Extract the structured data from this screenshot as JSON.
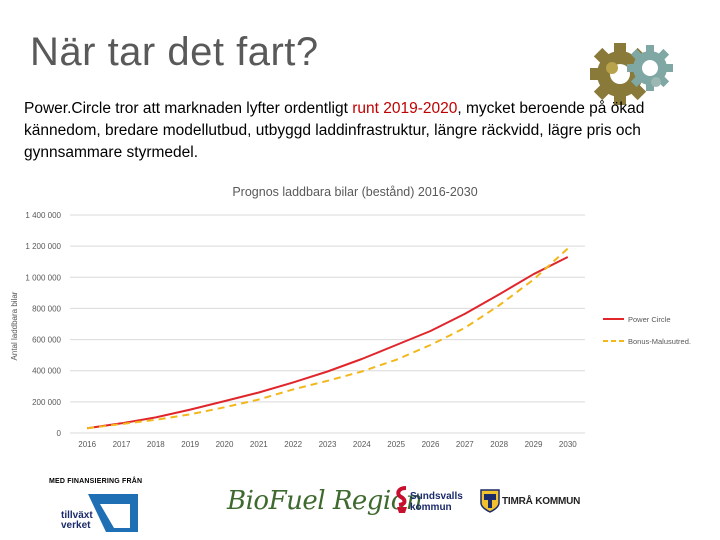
{
  "slide": {
    "title": "När tar det fart?",
    "intro_before": "Power.Circle tror att marknaden lyfter ordentligt ",
    "intro_highlight": "runt 2019-2020",
    "intro_after": ", mycket beroende på ökad kännedom, bredare modellutbud, utbyggd laddinfrastruktur, längre räckvidd, lägre pris och gynnsammare styrmedel."
  },
  "colors": {
    "power_circle": "#e0262b",
    "bonus_malus": "#f2b71a",
    "highlight": "#c00000",
    "grid": "#d9d9d9"
  },
  "chart_data": {
    "type": "line",
    "title": "Prognos laddbara bilar (bestånd) 2016-2030",
    "xlabel": "",
    "ylabel": "Antal laddbara bilar",
    "x": [
      "2016",
      "2017",
      "2018",
      "2019",
      "2020",
      "2021",
      "2022",
      "2023",
      "2024",
      "2025",
      "2026",
      "2027",
      "2028",
      "2029",
      "2030"
    ],
    "yticks": [
      "0",
      "200 000",
      "400 000",
      "600 000",
      "800 000",
      "1 000 000",
      "1 200 000",
      "1 400 000"
    ],
    "ylim": [
      0,
      1400000
    ],
    "grid": true,
    "legend_position": "right",
    "series": [
      {
        "name": "Power Circle",
        "style": "solid",
        "values": [
          30000,
          62000,
          100000,
          150000,
          205000,
          260000,
          325000,
          395000,
          475000,
          565000,
          655000,
          765000,
          890000,
          1020000,
          1130000
        ]
      },
      {
        "name": "Bonus-Malusutred.",
        "style": "dashed",
        "values": [
          30000,
          58000,
          85000,
          120000,
          165000,
          215000,
          280000,
          335000,
          395000,
          470000,
          565000,
          675000,
          820000,
          985000,
          1185000
        ]
      }
    ]
  },
  "footer": {
    "funding_label": "MED FINANSIERING FRÅN",
    "tillvaxt_line1": "tillväxt",
    "tillvaxt_line2": "verket",
    "biofuel": "BioFuel Region",
    "sundsvall_line1": "Sundsvalls",
    "sundsvall_line2": "kommun",
    "timra": "TIMRÅ KOMMUN"
  }
}
